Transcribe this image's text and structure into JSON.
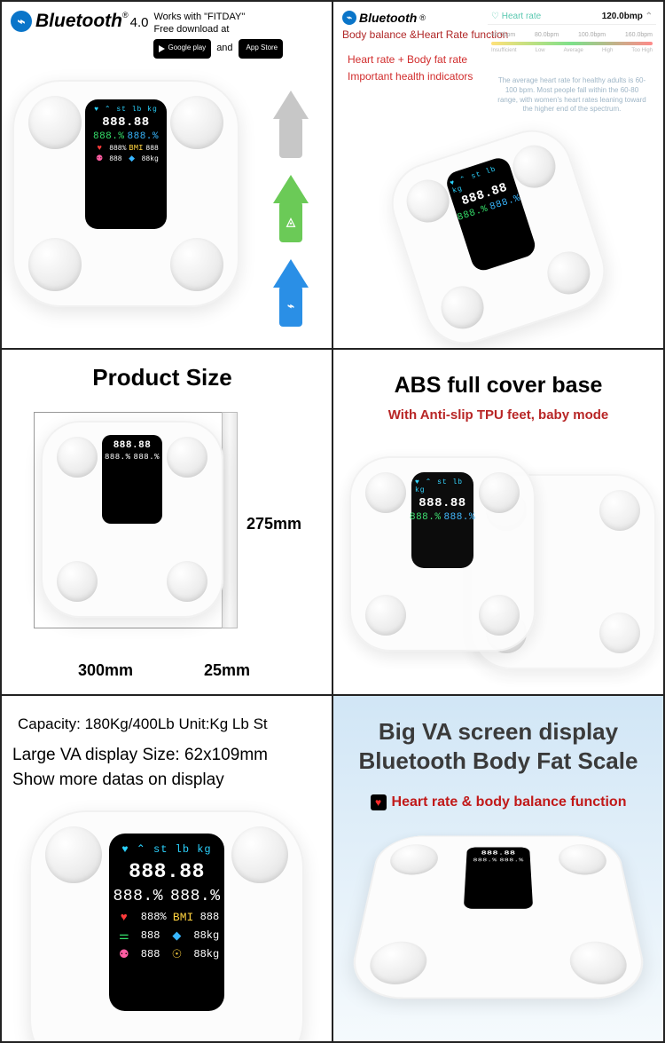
{
  "cell1": {
    "bt_label": "Bluetooth",
    "bt_version": "4.0",
    "works_with": "Works with \"FITDAY\"",
    "free_dl": "Free download at",
    "badge_google": "Google play",
    "and": "and",
    "badge_apple": "App Store",
    "arrows": {
      "apple": "",
      "android": "▲",
      "bt": ""
    }
  },
  "cell2": {
    "bt_label": "Bluetooth",
    "func": "Body balance &Heart Rate function",
    "line1": "Heart rate + Body fat rate",
    "line2": "Important health indicators",
    "hr_title": "Heart rate",
    "hr_value": "120.0bmp",
    "ticks": [
      "40.0bpm",
      "80.0bpm",
      "100.0bpm",
      "160.0bpm"
    ],
    "lbls": [
      "Insufficient",
      "Low",
      "Average",
      "High",
      "Too High"
    ],
    "note": "The average heart rate for healthy adults is 60-100 bpm. Most people fall within the 60-80 range, with women's heart rates leaning toward the higher end of the spectrum."
  },
  "cell3": {
    "title": "Product Size",
    "h": "275mm",
    "w": "300mm",
    "t": "25mm"
  },
  "cell4": {
    "title": "ABS full cover base",
    "sub": "With Anti-slip TPU feet, baby mode"
  },
  "cell5": {
    "l1": "Capacity: 180Kg/400Lb Unit:Kg Lb St",
    "l2": "Large VA display Size: 62x109mm",
    "l3": "Show more datas on display"
  },
  "cell6": {
    "title1": "Big VA screen display",
    "title2": "Bluetooth Body Fat Scale",
    "sub": "Heart rate & body balance function"
  },
  "screen": {
    "icons": "♥ ⌃ st lb kg",
    "big": "888.88",
    "mid_l": "888.%",
    "mid_r": "888.%",
    "r1_v": "888%",
    "r2_v": "888",
    "r3_v": "888",
    "r4_v": "88kg"
  },
  "colors": {
    "blue": "#0a75c9",
    "red": "#c11919",
    "green": "#6bca57",
    "arrow_blue": "#2a8fe6",
    "gray": "#c7c7c7",
    "sky_bg": "#d1e6f6"
  }
}
